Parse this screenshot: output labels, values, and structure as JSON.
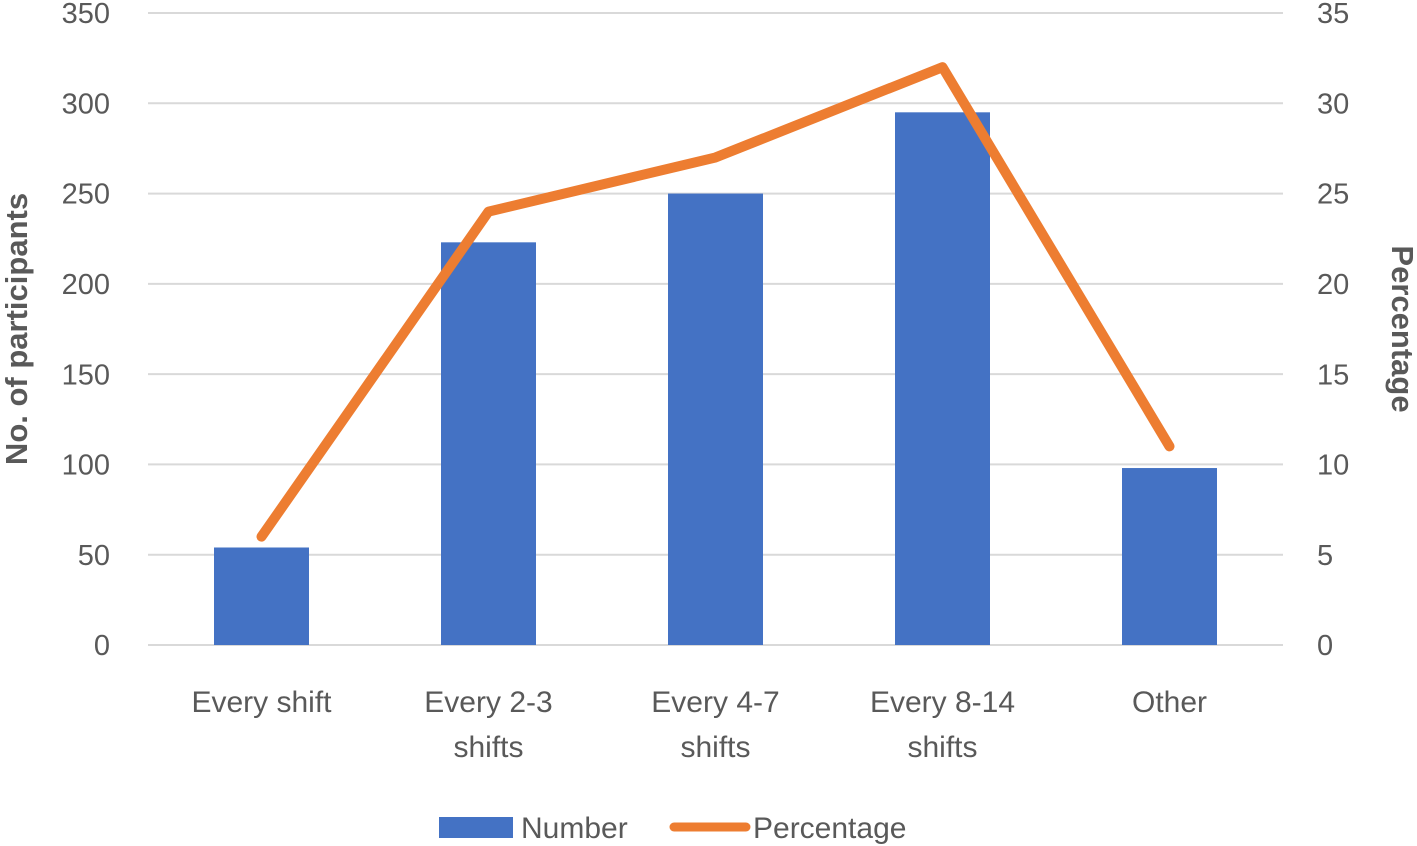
{
  "chart_data": {
    "type": "combo-bar-line",
    "categories": [
      "Every shift",
      "Every 2-3 shifts",
      "Every 4-7 shifts",
      "Every 8-14 shifts",
      "Other"
    ],
    "category_label_lines": [
      [
        "Every shift"
      ],
      [
        "Every 2-3",
        "shifts"
      ],
      [
        "Every 4-7",
        "shifts"
      ],
      [
        "Every 8-14",
        "shifts"
      ],
      [
        "Other"
      ]
    ],
    "series": [
      {
        "name": "Number",
        "type": "bar",
        "axis": "left",
        "color": "#4472C4",
        "values": [
          54,
          223,
          250,
          295,
          98
        ]
      },
      {
        "name": "Percentage",
        "type": "line",
        "axis": "right",
        "color": "#ED7D31",
        "values": [
          6,
          24,
          27,
          32,
          11
        ]
      }
    ],
    "left_axis": {
      "label": "No. of participants",
      "min": 0,
      "max": 350,
      "step": 50,
      "ticks": [
        0,
        50,
        100,
        150,
        200,
        250,
        300,
        350
      ]
    },
    "right_axis": {
      "label": "Percentage",
      "min": 0,
      "max": 35,
      "step": 5,
      "ticks": [
        0,
        5,
        10,
        15,
        20,
        25,
        30,
        35
      ]
    },
    "grid": true,
    "gridline_color": "#D9D9D9",
    "text_color": "#595959",
    "legend": {
      "position": "bottom",
      "entries": [
        "Number",
        "Percentage"
      ]
    }
  }
}
